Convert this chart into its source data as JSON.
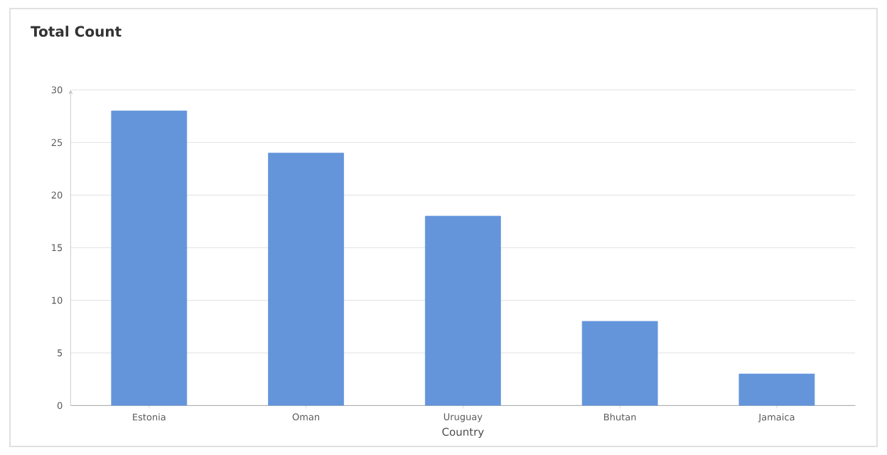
{
  "chart_data": {
    "type": "bar",
    "title": "Total Count",
    "xlabel": "Country",
    "categories": [
      "Estonia",
      "Oman",
      "Uruguay",
      "Bhutan",
      "Jamaica"
    ],
    "values": [
      28,
      24,
      18,
      8,
      3
    ],
    "color": "#6495db",
    "ylim": [
      0,
      30
    ],
    "yticks": [
      0,
      5,
      10,
      15,
      20,
      25,
      30
    ],
    "grid": "y"
  }
}
